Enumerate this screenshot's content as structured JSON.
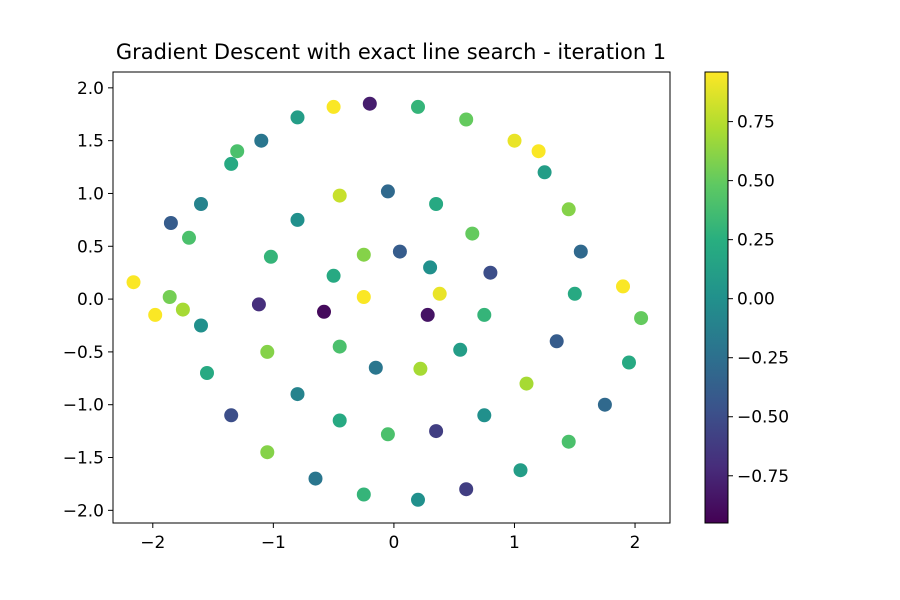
{
  "chart_data": {
    "type": "scatter",
    "title": "Gradient Descent with exact line search - iteration 1",
    "xlabel": "",
    "ylabel": "",
    "xlim": [
      -2.33,
      2.29
    ],
    "ylim": [
      -2.12,
      2.15
    ],
    "xticks": [
      -2,
      -1,
      0,
      1,
      2
    ],
    "xtick_labels": [
      "−2",
      "−1",
      "0",
      "1",
      "2"
    ],
    "yticks": [
      2.0,
      1.5,
      1.0,
      0.5,
      0.0,
      -0.5,
      -1.0,
      -1.5,
      -2.0
    ],
    "ytick_labels": [
      "2.0",
      "1.5",
      "1.0",
      "0.5",
      "0.0",
      "−0.5",
      "−1.0",
      "−1.5",
      "−2.0"
    ],
    "colorbar": {
      "colormap": "viridis",
      "range": [
        -0.95,
        0.96
      ],
      "ticks": [
        0.75,
        0.5,
        0.25,
        0.0,
        -0.25,
        -0.5,
        -0.75
      ],
      "tick_labels": [
        "0.75",
        "0.50",
        "0.25",
        "0.00",
        "−0.25",
        "−0.50",
        "−0.75"
      ]
    },
    "series": [
      {
        "description": "noisy spiral point cloud (two interleaved arms, r from ~0.15 to ~2.0), color = value in [-0.95, 0.96]",
        "points": [
          [
            -2.16,
            0.16,
            0.95
          ],
          [
            -1.98,
            -0.15,
            0.95
          ],
          [
            -1.86,
            0.02,
            0.55
          ],
          [
            -1.7,
            0.58,
            0.4
          ],
          [
            -1.6,
            0.9,
            -0.1
          ],
          [
            -1.35,
            1.28,
            0.2
          ],
          [
            -1.1,
            1.5,
            -0.2
          ],
          [
            -0.8,
            1.72,
            0.1
          ],
          [
            -0.5,
            1.82,
            0.95
          ],
          [
            -0.2,
            1.85,
            -0.8
          ],
          [
            0.2,
            1.82,
            0.3
          ],
          [
            0.6,
            1.7,
            0.5
          ],
          [
            1.0,
            1.5,
            0.9
          ],
          [
            1.25,
            1.2,
            0.1
          ],
          [
            1.45,
            0.85,
            0.6
          ],
          [
            1.55,
            0.45,
            -0.3
          ],
          [
            1.5,
            0.05,
            0.2
          ],
          [
            1.35,
            -0.4,
            -0.4
          ],
          [
            1.1,
            -0.8,
            0.7
          ],
          [
            0.75,
            -1.1,
            0.0
          ],
          [
            0.35,
            -1.25,
            -0.6
          ],
          [
            -0.05,
            -1.28,
            0.4
          ],
          [
            -0.45,
            -1.15,
            0.2
          ],
          [
            -0.8,
            -0.9,
            -0.1
          ],
          [
            -1.05,
            -0.5,
            0.6
          ],
          [
            -1.12,
            -0.05,
            -0.7
          ],
          [
            -1.02,
            0.4,
            0.3
          ],
          [
            -0.8,
            0.75,
            0.0
          ],
          [
            -0.45,
            0.98,
            0.8
          ],
          [
            -0.05,
            1.02,
            -0.3
          ],
          [
            0.35,
            0.9,
            0.2
          ],
          [
            0.65,
            0.62,
            0.5
          ],
          [
            0.8,
            0.25,
            -0.5
          ],
          [
            0.75,
            -0.15,
            0.3
          ],
          [
            0.55,
            -0.48,
            0.1
          ],
          [
            0.22,
            -0.66,
            0.7
          ],
          [
            -0.15,
            -0.65,
            -0.2
          ],
          [
            -0.45,
            -0.45,
            0.4
          ],
          [
            -0.58,
            -0.12,
            -0.9
          ],
          [
            -0.5,
            0.22,
            0.2
          ],
          [
            -0.25,
            0.42,
            0.6
          ],
          [
            0.05,
            0.45,
            -0.4
          ],
          [
            0.3,
            0.3,
            0.0
          ],
          [
            0.38,
            0.05,
            0.9
          ],
          [
            0.28,
            -0.15,
            -0.85
          ],
          [
            -0.25,
            0.02,
            0.95
          ],
          [
            1.9,
            0.12,
            0.95
          ],
          [
            2.05,
            -0.18,
            0.5
          ],
          [
            1.95,
            -0.6,
            0.2
          ],
          [
            1.75,
            -1.0,
            -0.3
          ],
          [
            1.45,
            -1.35,
            0.4
          ],
          [
            1.05,
            -1.62,
            0.1
          ],
          [
            0.6,
            -1.8,
            -0.6
          ],
          [
            0.2,
            -1.9,
            0.0
          ],
          [
            -0.25,
            -1.85,
            0.3
          ],
          [
            -0.65,
            -1.7,
            -0.2
          ],
          [
            -1.05,
            -1.45,
            0.6
          ],
          [
            -1.35,
            -1.1,
            -0.5
          ],
          [
            -1.55,
            -0.7,
            0.2
          ],
          [
            -1.6,
            -0.25,
            0.0
          ],
          [
            -1.85,
            0.72,
            -0.4
          ],
          [
            -1.75,
            -0.1,
            0.7
          ],
          [
            1.2,
            1.4,
            0.95
          ],
          [
            -1.3,
            1.4,
            0.4
          ]
        ]
      }
    ]
  }
}
